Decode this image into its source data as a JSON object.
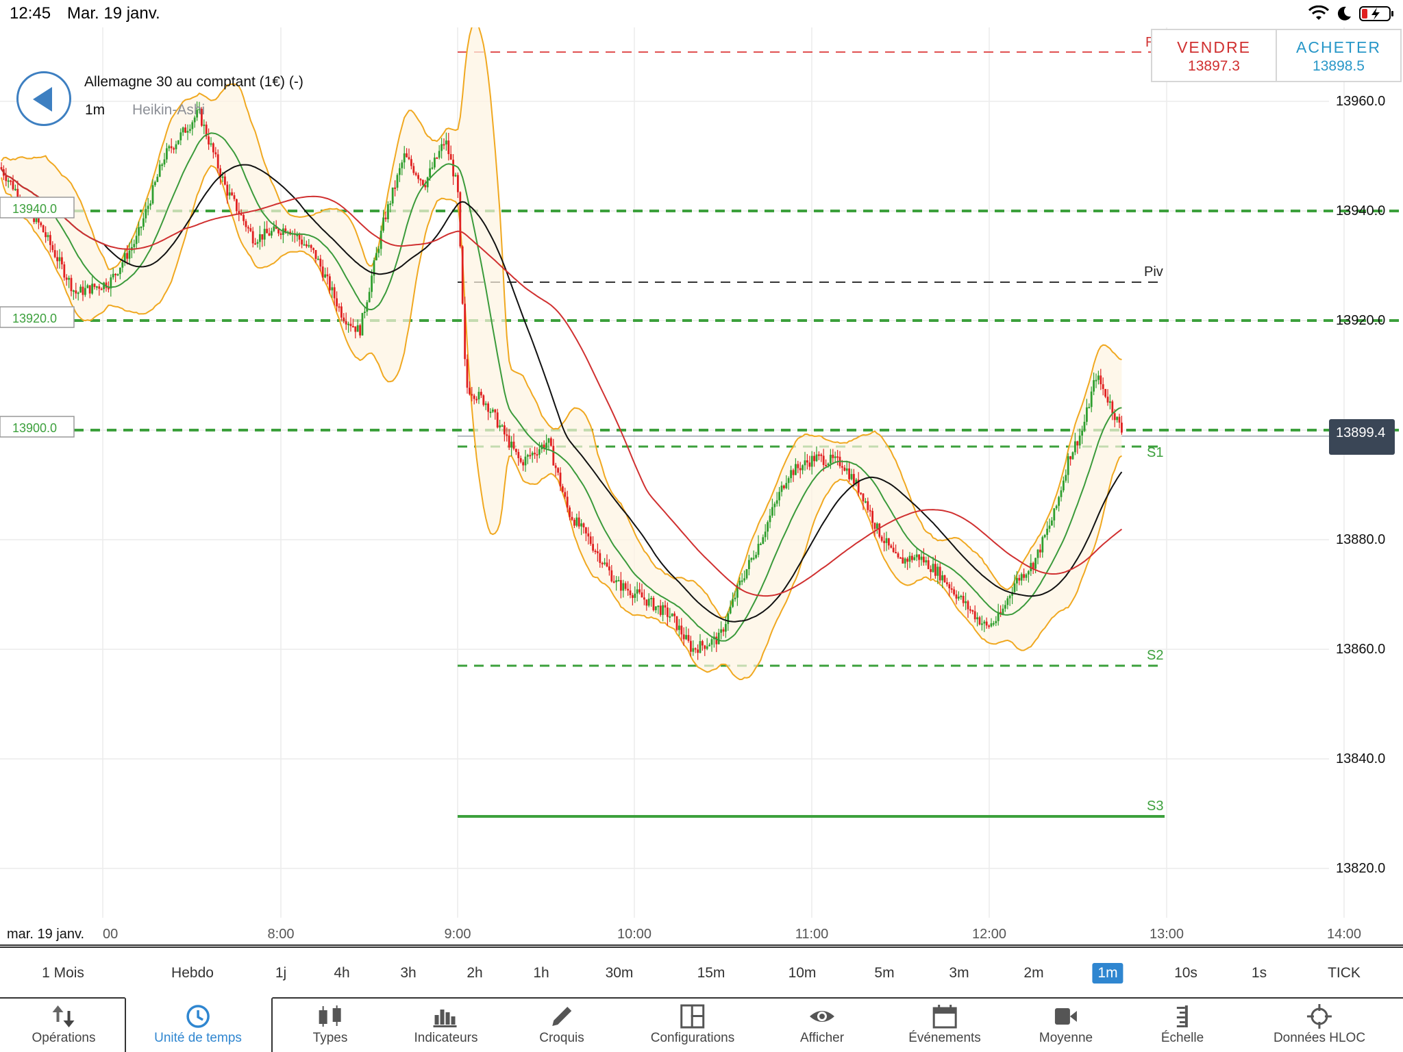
{
  "status_bar": {
    "time": "12:45",
    "date": "Mar. 19 janv.",
    "icons": [
      "wifi-icon",
      "moon-icon",
      "battery-charging-icon"
    ]
  },
  "header": {
    "instrument": "Allemagne 30 au comptant (1€) (-)",
    "timeframe": "1m",
    "chart_type": "Heikin-Ashi",
    "back_icon": "back-arrow-icon"
  },
  "trade": {
    "sell_label": "VENDRE",
    "sell_price": "13897.3",
    "buy_label": "ACHETER",
    "buy_price": "13898.5"
  },
  "chart": {
    "date_label": "mar. 19 janv.",
    "y_ticks": [
      "13960.0",
      "13940.0",
      "13920.0",
      "13880.0",
      "13860.0",
      "13840.0",
      "13820.0"
    ],
    "x_ticks": [
      "00",
      "8:00",
      "9:00",
      "10:00",
      "11:00",
      "12:00",
      "13:00",
      "14:00"
    ],
    "current_price": "13899.4",
    "left_levels": [
      "13940.0",
      "13920.0",
      "13900.0"
    ],
    "pivot_labels": {
      "piv": "Piv",
      "s1": "S1",
      "s2": "S2",
      "s3": "S3",
      "r1": "R"
    },
    "colors": {
      "bull": "#2e9e2e",
      "bear": "#e02020",
      "bollinger": "#f0a820",
      "ma_fast": "#3a9a3a",
      "ma_slow": "#d03030",
      "ma_mid": "#111111",
      "level": "#3ca03c",
      "price_tag": "#3a4656"
    }
  },
  "timeframes": {
    "items": [
      "1 Mois",
      "Hebdo",
      "1j",
      "4h",
      "3h",
      "2h",
      "1h",
      "30m",
      "15m",
      "10m",
      "5m",
      "3m",
      "2m",
      "1m",
      "10s",
      "1s",
      "TICK"
    ],
    "active": "1m"
  },
  "toolbar": {
    "items": [
      {
        "label": "Opérations",
        "icon": "up-down-arrows-icon"
      },
      {
        "label": "Unité de temps",
        "icon": "clock-icon"
      },
      {
        "label": "Types",
        "icon": "candlestick-icon"
      },
      {
        "label": "Indicateurs",
        "icon": "bar-chart-icon"
      },
      {
        "label": "Croquis",
        "icon": "pencil-icon"
      },
      {
        "label": "Configurations",
        "icon": "layout-icon"
      },
      {
        "label": "Afficher",
        "icon": "eye-icon"
      },
      {
        "label": "Événements",
        "icon": "calendar-icon"
      },
      {
        "label": "Moyenne",
        "icon": "camera-icon"
      },
      {
        "label": "Échelle",
        "icon": "ruler-icon"
      },
      {
        "label": "Données HLOC",
        "icon": "crosshair-icon"
      }
    ],
    "active": "Unité de temps"
  }
}
